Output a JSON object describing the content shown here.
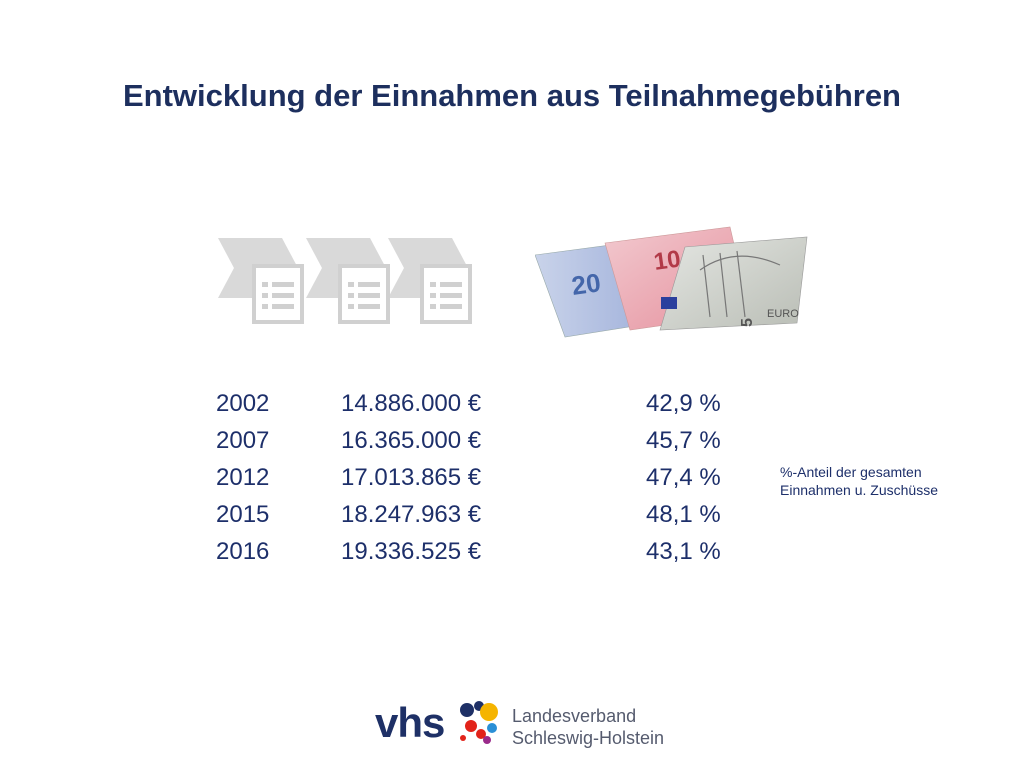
{
  "slide": {
    "title": "Entwicklung der Einnahmen aus Teilnahmegebühren"
  },
  "icons": {
    "process": "process-documents-icon",
    "money": "euro-banknotes-icon"
  },
  "rows": [
    {
      "year": "2002",
      "amount": "14.886.000 €",
      "pct": "42,9 %"
    },
    {
      "year": "2007",
      "amount": "16.365.000 €",
      "pct": "45,7 %"
    },
    {
      "year": "2012",
      "amount": "17.013.865 €",
      "pct": "47,4 %"
    },
    {
      "year": "2015",
      "amount": "18.247.963 €",
      "pct": "48,1 %"
    },
    {
      "year": "2016",
      "amount": "19.336.525 €",
      "pct": "43,1 %"
    }
  ],
  "note": {
    "line1": "%-Anteil der gesamten",
    "line2": "Einnahmen u. Zuschüsse"
  },
  "logo": {
    "brand": "vhs",
    "line1": "Landesverband",
    "line2": "Schleswig-Holstein"
  },
  "colors": {
    "title": "#1d2f5e",
    "text": "#1d2f6a",
    "logo_blue": "#1e3066",
    "logo_gray": "#555b6e"
  }
}
